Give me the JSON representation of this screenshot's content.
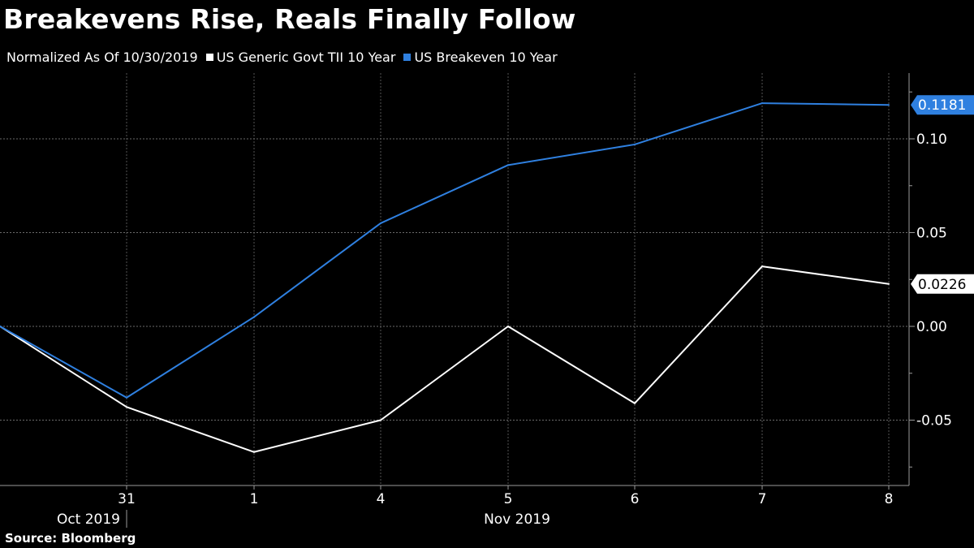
{
  "title": "Breakevens Rise, Reals Finally Follow",
  "legend": {
    "note": "Normalized As Of 10/30/2019",
    "items": [
      {
        "label": "US Generic Govt TII 10 Year",
        "color": "#ffffff"
      },
      {
        "label": "US Breakeven 10 Year",
        "color": "#2f80e0"
      }
    ]
  },
  "source": "Source: Bloomberg",
  "chart_data": {
    "type": "line",
    "x": [
      "Oct 30",
      "31",
      "1",
      "4",
      "5",
      "6",
      "7",
      "8"
    ],
    "x_tick_labels": [
      "31",
      "1",
      "4",
      "5",
      "6",
      "7",
      "8"
    ],
    "x_month_labels": [
      "Oct 2019",
      "Nov 2019"
    ],
    "ylim": [
      -0.075,
      0.135
    ],
    "y_ticks": [
      -0.05,
      0,
      0.05,
      0.1
    ],
    "y_tick_labels": [
      "-0.05",
      "0.00",
      "0.05",
      "0.10"
    ],
    "grid": true,
    "series": [
      {
        "name": "US Generic Govt TII 10 Year",
        "color": "#ffffff",
        "values": [
          0,
          -0.043,
          -0.067,
          -0.05,
          0,
          -0.041,
          0.032,
          0.0226
        ],
        "last_label": "0.0226"
      },
      {
        "name": "US Breakeven 10 Year",
        "color": "#2f80e0",
        "values": [
          0,
          -0.038,
          0.005,
          0.055,
          0.086,
          0.097,
          0.119,
          0.1181
        ],
        "last_label": "0.1181"
      }
    ]
  }
}
